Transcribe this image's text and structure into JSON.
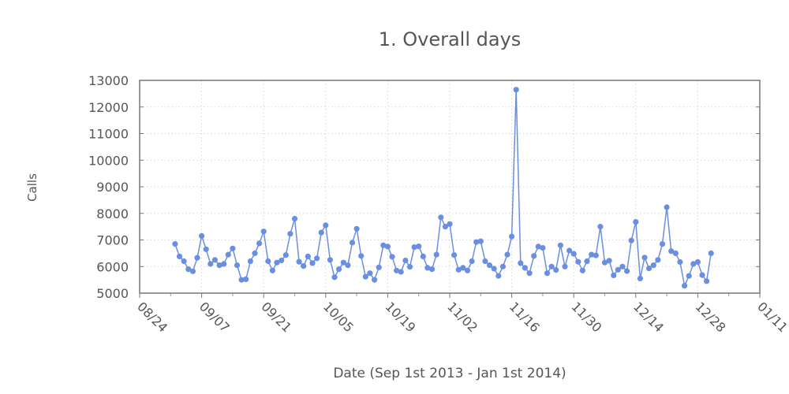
{
  "chart_data": {
    "type": "line",
    "title": "1. Overall days",
    "xlabel": "Date (Sep 1st 2013 - Jan 1st 2014)",
    "ylabel": "Calls",
    "ylim": [
      5000,
      13000
    ],
    "xlim": [
      "2013-08-24",
      "2014-01-11"
    ],
    "yticks": [
      "5000",
      "6000",
      "7000",
      "8000",
      "9000",
      "10000",
      "11000",
      "12000",
      "13000"
    ],
    "xticks": [
      {
        "date": "2013-08-24",
        "label": "08/24"
      },
      {
        "date": "2013-09-07",
        "label": "09/07"
      },
      {
        "date": "2013-09-21",
        "label": "09/21"
      },
      {
        "date": "2013-10-05",
        "label": "10/05"
      },
      {
        "date": "2013-10-19",
        "label": "10/19"
      },
      {
        "date": "2013-11-02",
        "label": "11/02"
      },
      {
        "date": "2013-11-16",
        "label": "11/16"
      },
      {
        "date": "2013-11-30",
        "label": "11/30"
      },
      {
        "date": "2013-12-14",
        "label": "12/14"
      },
      {
        "date": "2013-12-28",
        "label": "12/28"
      },
      {
        "date": "2014-01-11",
        "label": "01/11"
      }
    ],
    "grid": true,
    "line_color": "#6b8fe0",
    "series": [
      {
        "points": [
          [
            "2013-09-01",
            6850
          ],
          [
            "2013-09-02",
            6380
          ],
          [
            "2013-09-03",
            6200
          ],
          [
            "2013-09-04",
            5900
          ],
          [
            "2013-09-05",
            5820
          ],
          [
            "2013-09-06",
            6330
          ],
          [
            "2013-09-07",
            7150
          ],
          [
            "2013-09-08",
            6650
          ],
          [
            "2013-09-09",
            6100
          ],
          [
            "2013-09-10",
            6250
          ],
          [
            "2013-09-11",
            6050
          ],
          [
            "2013-09-12",
            6100
          ],
          [
            "2013-09-13",
            6450
          ],
          [
            "2013-09-14",
            6680
          ],
          [
            "2013-09-15",
            6050
          ],
          [
            "2013-09-16",
            5500
          ],
          [
            "2013-09-17",
            5520
          ],
          [
            "2013-09-18",
            6200
          ],
          [
            "2013-09-19",
            6500
          ],
          [
            "2013-09-20",
            6870
          ],
          [
            "2013-09-21",
            7320
          ],
          [
            "2013-09-22",
            6200
          ],
          [
            "2013-09-23",
            5850
          ],
          [
            "2013-09-24",
            6150
          ],
          [
            "2013-09-25",
            6230
          ],
          [
            "2013-09-26",
            6430
          ],
          [
            "2013-09-27",
            7230
          ],
          [
            "2013-09-28",
            7800
          ],
          [
            "2013-09-29",
            6180
          ],
          [
            "2013-09-30",
            6020
          ],
          [
            "2013-10-01",
            6380
          ],
          [
            "2013-10-02",
            6130
          ],
          [
            "2013-10-03",
            6310
          ],
          [
            "2013-10-04",
            7280
          ],
          [
            "2013-10-05",
            7550
          ],
          [
            "2013-10-06",
            6250
          ],
          [
            "2013-10-07",
            5600
          ],
          [
            "2013-10-08",
            5900
          ],
          [
            "2013-10-09",
            6150
          ],
          [
            "2013-10-10",
            6050
          ],
          [
            "2013-10-11",
            6900
          ],
          [
            "2013-10-12",
            7420
          ],
          [
            "2013-10-13",
            6400
          ],
          [
            "2013-10-14",
            5620
          ],
          [
            "2013-10-15",
            5750
          ],
          [
            "2013-10-16",
            5500
          ],
          [
            "2013-10-17",
            5970
          ],
          [
            "2013-10-18",
            6800
          ],
          [
            "2013-10-19",
            6750
          ],
          [
            "2013-10-20",
            6370
          ],
          [
            "2013-10-21",
            5850
          ],
          [
            "2013-10-22",
            5800
          ],
          [
            "2013-10-23",
            6230
          ],
          [
            "2013-10-24",
            5990
          ],
          [
            "2013-10-25",
            6730
          ],
          [
            "2013-10-26",
            6760
          ],
          [
            "2013-10-27",
            6380
          ],
          [
            "2013-10-28",
            5950
          ],
          [
            "2013-10-29",
            5900
          ],
          [
            "2013-10-30",
            6450
          ],
          [
            "2013-10-31",
            7850
          ],
          [
            "2013-11-01",
            7500
          ],
          [
            "2013-11-02",
            7600
          ],
          [
            "2013-11-03",
            6430
          ],
          [
            "2013-11-04",
            5880
          ],
          [
            "2013-11-05",
            5950
          ],
          [
            "2013-11-06",
            5850
          ],
          [
            "2013-11-07",
            6200
          ],
          [
            "2013-11-08",
            6920
          ],
          [
            "2013-11-09",
            6950
          ],
          [
            "2013-11-10",
            6200
          ],
          [
            "2013-11-11",
            6050
          ],
          [
            "2013-11-12",
            5920
          ],
          [
            "2013-11-13",
            5650
          ],
          [
            "2013-11-14",
            6000
          ],
          [
            "2013-11-15",
            6450
          ],
          [
            "2013-11-16",
            7130
          ],
          [
            "2013-11-17",
            12650
          ],
          [
            "2013-11-18",
            6130
          ],
          [
            "2013-11-19",
            5950
          ],
          [
            "2013-11-20",
            5750
          ],
          [
            "2013-11-21",
            6400
          ],
          [
            "2013-11-22",
            6750
          ],
          [
            "2013-11-23",
            6700
          ],
          [
            "2013-11-24",
            5750
          ],
          [
            "2013-11-25",
            6000
          ],
          [
            "2013-11-26",
            5870
          ],
          [
            "2013-11-27",
            6800
          ],
          [
            "2013-11-28",
            6000
          ],
          [
            "2013-11-29",
            6600
          ],
          [
            "2013-11-30",
            6480
          ],
          [
            "2013-12-01",
            6180
          ],
          [
            "2013-12-02",
            5850
          ],
          [
            "2013-12-03",
            6200
          ],
          [
            "2013-12-04",
            6450
          ],
          [
            "2013-12-05",
            6420
          ],
          [
            "2013-12-06",
            7500
          ],
          [
            "2013-12-07",
            6150
          ],
          [
            "2013-12-08",
            6220
          ],
          [
            "2013-12-09",
            5670
          ],
          [
            "2013-12-10",
            5880
          ],
          [
            "2013-12-11",
            6000
          ],
          [
            "2013-12-12",
            5830
          ],
          [
            "2013-12-13",
            6980
          ],
          [
            "2013-12-14",
            7680
          ],
          [
            "2013-12-15",
            5550
          ],
          [
            "2013-12-16",
            6340
          ],
          [
            "2013-12-17",
            5930
          ],
          [
            "2013-12-18",
            6050
          ],
          [
            "2013-12-19",
            6250
          ],
          [
            "2013-12-20",
            6850
          ],
          [
            "2013-12-21",
            8230
          ],
          [
            "2013-12-22",
            6580
          ],
          [
            "2013-12-23",
            6500
          ],
          [
            "2013-12-24",
            6170
          ],
          [
            "2013-12-25",
            5280
          ],
          [
            "2013-12-26",
            5650
          ],
          [
            "2013-12-27",
            6100
          ],
          [
            "2013-12-28",
            6170
          ],
          [
            "2013-12-29",
            5680
          ],
          [
            "2013-12-30",
            5450
          ],
          [
            "2013-12-31",
            6500
          ]
        ]
      }
    ]
  }
}
